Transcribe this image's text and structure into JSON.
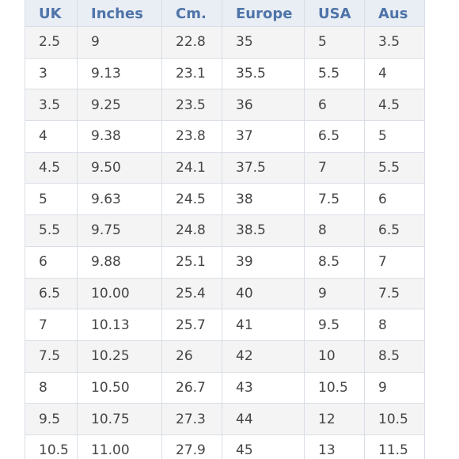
{
  "size_chart": {
    "columns": [
      "UK",
      "Inches",
      "Cm.",
      "Europe",
      "USA",
      "Aus"
    ],
    "rows": [
      [
        "2.5",
        "9",
        "22.8",
        "35",
        "5",
        "3.5"
      ],
      [
        "3",
        "9.13",
        "23.1",
        "35.5",
        "5.5",
        "4"
      ],
      [
        "3.5",
        "9.25",
        "23.5",
        "36",
        "6",
        "4.5"
      ],
      [
        "4",
        "9.38",
        "23.8",
        "37",
        "6.5",
        "5"
      ],
      [
        "4.5",
        "9.50",
        "24.1",
        "37.5",
        "7",
        "5.5"
      ],
      [
        "5",
        "9.63",
        "24.5",
        "38",
        "7.5",
        "6"
      ],
      [
        "5.5",
        "9.75",
        "24.8",
        "38.5",
        "8",
        "6.5"
      ],
      [
        "6",
        "9.88",
        "25.1",
        "39",
        "8.5",
        "7"
      ],
      [
        "6.5",
        "10.00",
        "25.4",
        "40",
        "9",
        "7.5"
      ],
      [
        "7",
        "10.13",
        "25.7",
        "41",
        "9.5",
        "8"
      ],
      [
        "7.5",
        "10.25",
        "26",
        "42",
        "10",
        "8.5"
      ],
      [
        "8",
        "10.50",
        "26.7",
        "43",
        "10.5",
        "9"
      ],
      [
        "9.5",
        "10.75",
        "27.3",
        "44",
        "12",
        "10.5"
      ],
      [
        "10.5",
        "11.00",
        "27.9",
        "45",
        "13",
        "11.5"
      ]
    ]
  },
  "colors": {
    "header_background": "#e9eef5",
    "header_text": "#4f74a8",
    "cell_text": "#454545",
    "stripe_background": "#f4f4f4",
    "grid_line": "#d9dee6"
  }
}
